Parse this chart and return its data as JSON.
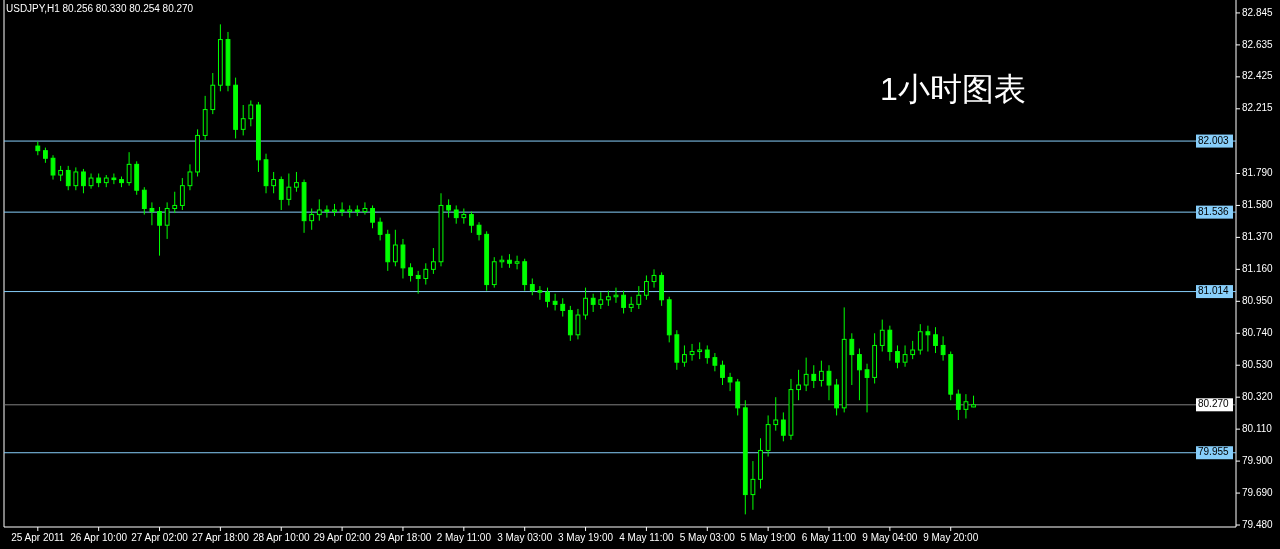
{
  "chart_data": {
    "type": "candlestick",
    "title": "1小时图表",
    "annotations": [
      "USDJPY,H1  80.256 80.330 80.254 80.270"
    ],
    "color": "#00ff00",
    "ylim": [
      79.467,
      82.93
    ],
    "yticks": [
      82.845,
      82.635,
      82.425,
      82.215,
      {
        "value": 81.79,
        "label": "81.790"
      },
      {
        "value": 81.58,
        "label": "81.580"
      },
      {
        "value": 81.37,
        "label": "81.370"
      },
      {
        "value": 81.16,
        "label": "81.160"
      },
      {
        "value": 80.95,
        "label": "80.950"
      },
      {
        "value": 80.74,
        "label": "80.740"
      },
      {
        "value": 80.53,
        "label": "80.530"
      },
      {
        "value": 80.32,
        "label": "80.320"
      },
      {
        "value": 80.11,
        "label": "80.110"
      },
      {
        "value": 79.9,
        "label": "79.900"
      },
      {
        "value": 79.69,
        "label": "79.690"
      },
      {
        "value": 79.48,
        "label": "79.480"
      }
    ],
    "ref_lines": [
      {
        "axis": "y",
        "value": 82.003,
        "label": "82.003",
        "color": "#87cefa"
      },
      {
        "axis": "y",
        "value": 81.536,
        "label": "81.536",
        "color": "#87cefa"
      },
      {
        "axis": "y",
        "value": 81.014,
        "label": "81.014",
        "color": "#87cefa"
      },
      {
        "axis": "y",
        "value": 80.27,
        "label": "80.270",
        "color": "#808080"
      },
      {
        "axis": "y",
        "value": 79.955,
        "label": "79.955",
        "color": "#87cefa"
      }
    ],
    "categories": [
      "25 Apr 2011",
      null,
      null,
      null,
      null,
      null,
      null,
      null,
      "26 Apr 10:00",
      null,
      null,
      null,
      null,
      null,
      null,
      null,
      "27 Apr 02:00",
      null,
      null,
      null,
      null,
      null,
      null,
      null,
      "27 Apr 18:00",
      null,
      null,
      null,
      null,
      null,
      null,
      null,
      "28 Apr 10:00",
      null,
      null,
      null,
      null,
      null,
      null,
      null,
      "29 Apr 02:00",
      null,
      null,
      null,
      null,
      null,
      null,
      null,
      "29 Apr 18:00",
      null,
      null,
      null,
      null,
      null,
      null,
      null,
      "2 May 11:00",
      null,
      null,
      null,
      null,
      null,
      null,
      null,
      "3 May 03:00",
      null,
      null,
      null,
      null,
      null,
      null,
      null,
      "3 May 19:00",
      null,
      null,
      null,
      null,
      null,
      null,
      null,
      "4 May 11:00",
      null,
      null,
      null,
      null,
      null,
      null,
      null,
      "5 May 03:00",
      null,
      null,
      null,
      null,
      null,
      null,
      null,
      "5 May 19:00",
      null,
      null,
      null,
      null,
      null,
      null,
      null,
      "6 May 11:00",
      null,
      null,
      null,
      null,
      null,
      null,
      null,
      "9 May 04:00",
      null,
      null,
      null,
      null,
      null,
      null,
      null,
      "9 May 20:00",
      null,
      null,
      null,
      null,
      null,
      null,
      null,
      null,
      null,
      null,
      null,
      null,
      null,
      null,
      null,
      null,
      null,
      null,
      null,
      null,
      null,
      null,
      null,
      null,
      null,
      null,
      null,
      null,
      null,
      null,
      null,
      null,
      null,
      null,
      null,
      null,
      null
    ],
    "ohlc": [
      [
        81.97,
        82.0,
        81.91,
        81.94
      ],
      [
        81.94,
        81.96,
        81.86,
        81.89
      ],
      [
        81.89,
        81.91,
        81.75,
        81.78
      ],
      [
        81.78,
        81.84,
        81.74,
        81.81
      ],
      [
        81.81,
        81.84,
        81.68,
        81.71
      ],
      [
        81.71,
        81.83,
        81.68,
        81.8
      ],
      [
        81.8,
        81.82,
        81.66,
        81.71
      ],
      [
        81.71,
        81.79,
        81.69,
        81.76
      ],
      [
        81.76,
        81.79,
        81.7,
        81.73
      ],
      [
        81.73,
        81.78,
        81.7,
        81.76
      ],
      [
        81.76,
        81.79,
        81.72,
        81.75
      ],
      [
        81.75,
        81.77,
        81.7,
        81.73
      ],
      [
        81.73,
        81.93,
        81.71,
        81.85
      ],
      [
        81.85,
        81.87,
        81.65,
        81.68
      ],
      [
        81.68,
        81.7,
        81.52,
        81.56
      ],
      [
        81.56,
        81.6,
        81.45,
        81.54
      ],
      [
        81.54,
        81.57,
        81.25,
        81.45
      ],
      [
        81.45,
        81.6,
        81.36,
        81.56
      ],
      [
        81.56,
        81.67,
        81.53,
        81.58
      ],
      [
        81.58,
        81.76,
        81.55,
        81.71
      ],
      [
        81.71,
        81.85,
        81.68,
        81.8
      ],
      [
        81.8,
        82.08,
        81.77,
        82.04
      ],
      [
        82.04,
        82.3,
        82.01,
        82.21
      ],
      [
        82.21,
        82.45,
        82.18,
        82.37
      ],
      [
        82.37,
        82.77,
        82.33,
        82.67
      ],
      [
        82.67,
        82.72,
        82.33,
        82.37
      ],
      [
        82.37,
        82.42,
        82.02,
        82.08
      ],
      [
        82.08,
        82.24,
        82.04,
        82.15
      ],
      [
        82.15,
        82.27,
        82.1,
        82.24
      ],
      [
        82.24,
        82.26,
        81.8,
        81.88
      ],
      [
        81.88,
        81.92,
        81.66,
        81.71
      ],
      [
        81.71,
        81.8,
        81.66,
        81.75
      ],
      [
        81.75,
        81.77,
        81.55,
        81.62
      ],
      [
        81.62,
        81.79,
        81.58,
        81.7
      ],
      [
        81.7,
        81.8,
        81.67,
        81.73
      ],
      [
        81.73,
        81.75,
        81.4,
        81.48
      ],
      [
        81.48,
        81.56,
        81.42,
        81.52
      ],
      [
        81.52,
        81.62,
        81.48,
        81.55
      ],
      [
        81.55,
        81.58,
        81.5,
        81.54
      ],
      [
        81.54,
        81.59,
        81.51,
        81.55
      ],
      [
        81.55,
        81.6,
        81.51,
        81.54
      ],
      [
        81.54,
        81.58,
        81.5,
        81.55
      ],
      [
        81.55,
        81.58,
        81.51,
        81.54
      ],
      [
        81.54,
        81.6,
        81.52,
        81.56
      ],
      [
        81.56,
        81.58,
        81.43,
        81.47
      ],
      [
        81.47,
        81.5,
        81.35,
        81.39
      ],
      [
        81.39,
        81.42,
        81.15,
        81.21
      ],
      [
        81.21,
        81.42,
        81.18,
        81.32
      ],
      [
        81.32,
        81.36,
        81.1,
        81.17
      ],
      [
        81.17,
        81.2,
        81.08,
        81.12
      ],
      [
        81.12,
        81.15,
        81.0,
        81.1
      ],
      [
        81.1,
        81.2,
        81.06,
        81.16
      ],
      [
        81.16,
        81.3,
        81.13,
        81.21
      ],
      [
        81.21,
        81.66,
        81.18,
        81.58
      ],
      [
        81.58,
        81.62,
        81.5,
        81.55
      ],
      [
        81.55,
        81.58,
        81.46,
        81.5
      ],
      [
        81.5,
        81.56,
        81.46,
        81.52
      ],
      [
        81.52,
        81.54,
        81.4,
        81.45
      ],
      [
        81.45,
        81.47,
        81.35,
        81.39
      ],
      [
        81.39,
        81.41,
        81.02,
        81.06
      ],
      [
        81.06,
        81.24,
        81.04,
        81.21
      ],
      [
        81.21,
        81.25,
        81.17,
        81.22
      ],
      [
        81.22,
        81.26,
        81.17,
        81.2
      ],
      [
        81.2,
        81.25,
        81.16,
        81.21
      ],
      [
        81.21,
        81.23,
        81.02,
        81.06
      ],
      [
        81.06,
        81.1,
        80.99,
        81.02
      ],
      [
        81.02,
        81.05,
        80.96,
        81.01
      ],
      [
        81.01,
        81.04,
        80.91,
        80.95
      ],
      [
        80.95,
        81.0,
        80.89,
        80.93
      ],
      [
        80.93,
        80.97,
        80.85,
        80.89
      ],
      [
        80.89,
        80.92,
        80.69,
        80.73
      ],
      [
        80.73,
        80.9,
        80.7,
        80.86
      ],
      [
        80.86,
        81.04,
        80.83,
        80.97
      ],
      [
        80.97,
        81.0,
        80.88,
        80.93
      ],
      [
        80.93,
        81.01,
        80.9,
        80.96
      ],
      [
        80.96,
        81.02,
        80.92,
        80.98
      ],
      [
        80.98,
        81.04,
        80.94,
        80.99
      ],
      [
        80.99,
        81.02,
        80.87,
        80.91
      ],
      [
        80.91,
        80.98,
        80.88,
        80.93
      ],
      [
        80.93,
        81.05,
        80.9,
        80.99
      ],
      [
        80.99,
        81.12,
        80.96,
        81.08
      ],
      [
        81.08,
        81.16,
        81.04,
        81.12
      ],
      [
        81.12,
        81.14,
        80.92,
        80.96
      ],
      [
        80.96,
        80.98,
        80.68,
        80.73
      ],
      [
        80.73,
        80.76,
        80.5,
        80.55
      ],
      [
        80.55,
        80.66,
        80.52,
        80.6
      ],
      [
        80.6,
        80.67,
        80.56,
        80.62
      ],
      [
        80.62,
        80.68,
        80.57,
        80.63
      ],
      [
        80.63,
        80.66,
        80.54,
        80.58
      ],
      [
        80.58,
        80.61,
        80.49,
        80.53
      ],
      [
        80.53,
        80.56,
        80.4,
        80.45
      ],
      [
        80.45,
        80.48,
        80.36,
        80.42
      ],
      [
        80.42,
        80.44,
        80.2,
        80.25
      ],
      [
        80.25,
        80.3,
        79.55,
        79.68
      ],
      [
        79.68,
        79.9,
        79.58,
        79.78
      ],
      [
        79.78,
        80.05,
        79.72,
        79.97
      ],
      [
        79.97,
        80.2,
        79.93,
        80.14
      ],
      [
        80.14,
        80.32,
        80.1,
        80.17
      ],
      [
        80.17,
        80.22,
        80.03,
        80.07
      ],
      [
        80.07,
        80.44,
        80.04,
        80.37
      ],
      [
        80.37,
        80.5,
        80.3,
        80.4
      ],
      [
        80.4,
        80.58,
        80.36,
        80.47
      ],
      [
        80.47,
        80.53,
        80.38,
        80.43
      ],
      [
        80.43,
        80.56,
        80.39,
        80.49
      ],
      [
        80.49,
        80.53,
        80.3,
        80.4
      ],
      [
        80.4,
        80.44,
        80.2,
        80.25
      ],
      [
        80.25,
        80.91,
        80.22,
        80.7
      ],
      [
        80.7,
        80.74,
        80.4,
        80.6
      ],
      [
        80.6,
        80.64,
        80.3,
        80.5
      ],
      [
        80.5,
        80.54,
        80.22,
        80.45
      ],
      [
        80.45,
        80.74,
        80.41,
        80.66
      ],
      [
        80.66,
        80.83,
        80.62,
        80.76
      ],
      [
        80.76,
        80.79,
        80.56,
        80.62
      ],
      [
        80.62,
        80.66,
        80.51,
        80.55
      ],
      [
        80.55,
        80.66,
        80.52,
        80.6
      ],
      [
        80.6,
        80.69,
        80.57,
        80.63
      ],
      [
        80.63,
        80.8,
        80.6,
        80.75
      ],
      [
        80.75,
        80.79,
        80.62,
        80.73
      ],
      [
        80.73,
        80.78,
        80.61,
        80.66
      ],
      [
        80.66,
        80.72,
        80.56,
        80.6
      ],
      [
        80.6,
        80.62,
        80.3,
        80.34
      ],
      [
        80.34,
        80.37,
        80.17,
        80.24
      ],
      [
        80.24,
        80.34,
        80.18,
        80.29
      ],
      [
        80.256,
        80.33,
        80.254,
        80.27
      ],
      null,
      null,
      null,
      null,
      null,
      null,
      null,
      null,
      null,
      null,
      null,
      null,
      null,
      null,
      null,
      null,
      null,
      null,
      null,
      null,
      null,
      null,
      null,
      null,
      null,
      null,
      null,
      null,
      null,
      null,
      null,
      null,
      null,
      null
    ]
  }
}
